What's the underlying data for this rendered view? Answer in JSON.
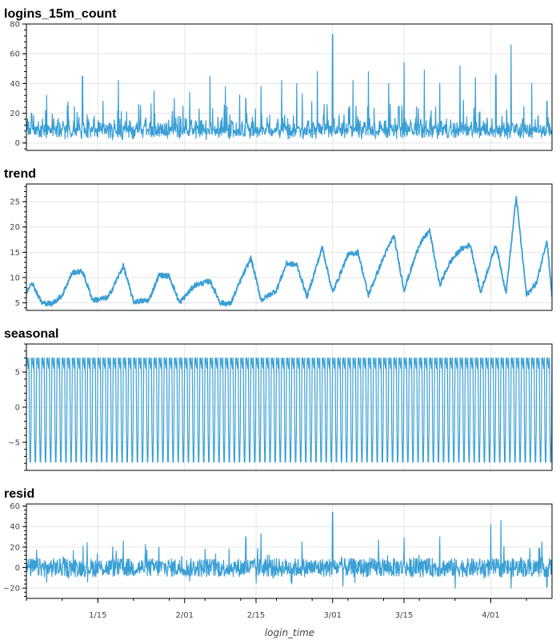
{
  "chart_data": {
    "type": "line",
    "xlabel": "login_time",
    "x_range": [
      "2020-01-01",
      "2020-04-13"
    ],
    "x_tick_labels": [
      {
        "label": "1/15",
        "date": "2020-01-15"
      },
      {
        "label": "2/01",
        "date": "2020-02-01"
      },
      {
        "label": "2/15",
        "date": "2020-02-15"
      },
      {
        "label": "3/01",
        "date": "2020-03-01"
      },
      {
        "label": "3/15",
        "date": "2020-03-15"
      },
      {
        "label": "4/01",
        "date": "2020-04-01"
      }
    ],
    "line_color": "#3a9fd5",
    "grid": true,
    "panels": [
      {
        "title": "logins_15m_count",
        "ylim": [
          -5,
          80
        ],
        "yticks": [
          0,
          20,
          40,
          60,
          80
        ],
        "series": [
          {
            "x": "2020-01-02",
            "y": 20
          },
          {
            "x": "2020-01-05",
            "y": 32
          },
          {
            "x": "2020-01-09",
            "y": 25
          },
          {
            "x": "2020-01-12",
            "y": 45
          },
          {
            "x": "2020-01-16",
            "y": 28
          },
          {
            "x": "2020-01-19",
            "y": 42
          },
          {
            "x": "2020-01-23",
            "y": 26
          },
          {
            "x": "2020-01-26",
            "y": 35
          },
          {
            "x": "2020-01-30",
            "y": 30
          },
          {
            "x": "2020-02-02",
            "y": 34
          },
          {
            "x": "2020-02-06",
            "y": 45
          },
          {
            "x": "2020-02-09",
            "y": 38
          },
          {
            "x": "2020-02-13",
            "y": 30
          },
          {
            "x": "2020-02-16",
            "y": 38
          },
          {
            "x": "2020-02-20",
            "y": 42
          },
          {
            "x": "2020-02-23",
            "y": 40
          },
          {
            "x": "2020-02-27",
            "y": 48
          },
          {
            "x": "2020-03-01",
            "y": 73
          },
          {
            "x": "2020-03-05",
            "y": 42
          },
          {
            "x": "2020-03-08",
            "y": 48
          },
          {
            "x": "2020-03-12",
            "y": 40
          },
          {
            "x": "2020-03-15",
            "y": 54
          },
          {
            "x": "2020-03-19",
            "y": 49
          },
          {
            "x": "2020-03-22",
            "y": 40
          },
          {
            "x": "2020-03-26",
            "y": 52
          },
          {
            "x": "2020-03-29",
            "y": 44
          },
          {
            "x": "2020-04-02",
            "y": 46
          },
          {
            "x": "2020-04-05",
            "y": 66
          },
          {
            "x": "2020-04-09",
            "y": 40
          },
          {
            "x": "2020-04-12",
            "y": 28
          }
        ]
      },
      {
        "title": "trend",
        "ylim": [
          3.5,
          28.5
        ],
        "yticks": [
          5,
          10,
          15,
          20,
          25
        ],
        "series": [
          {
            "x": "2020-01-01",
            "y": 7.0
          },
          {
            "x": "2020-01-02",
            "y": 9.2
          },
          {
            "x": "2020-01-04",
            "y": 5.0
          },
          {
            "x": "2020-01-06",
            "y": 4.8
          },
          {
            "x": "2020-01-08",
            "y": 6.5
          },
          {
            "x": "2020-01-10",
            "y": 11.0
          },
          {
            "x": "2020-01-12",
            "y": 11.2
          },
          {
            "x": "2020-01-14",
            "y": 5.5
          },
          {
            "x": "2020-01-17",
            "y": 6.0
          },
          {
            "x": "2020-01-20",
            "y": 12.3
          },
          {
            "x": "2020-01-22",
            "y": 5.2
          },
          {
            "x": "2020-01-25",
            "y": 5.5
          },
          {
            "x": "2020-01-27",
            "y": 10.5
          },
          {
            "x": "2020-01-29",
            "y": 10.3
          },
          {
            "x": "2020-01-31",
            "y": 5.0
          },
          {
            "x": "2020-02-03",
            "y": 8.5
          },
          {
            "x": "2020-02-06",
            "y": 9.3
          },
          {
            "x": "2020-02-08",
            "y": 5.0
          },
          {
            "x": "2020-02-10",
            "y": 4.8
          },
          {
            "x": "2020-02-12",
            "y": 9.5
          },
          {
            "x": "2020-02-14",
            "y": 13.8
          },
          {
            "x": "2020-02-16",
            "y": 5.5
          },
          {
            "x": "2020-02-19",
            "y": 7.5
          },
          {
            "x": "2020-02-21",
            "y": 12.8
          },
          {
            "x": "2020-02-23",
            "y": 12.5
          },
          {
            "x": "2020-02-25",
            "y": 6.2
          },
          {
            "x": "2020-02-28",
            "y": 16.0
          },
          {
            "x": "2020-03-01",
            "y": 7.0
          },
          {
            "x": "2020-03-04",
            "y": 14.5
          },
          {
            "x": "2020-03-06",
            "y": 15.0
          },
          {
            "x": "2020-03-08",
            "y": 6.5
          },
          {
            "x": "2020-03-11",
            "y": 14.0
          },
          {
            "x": "2020-03-13",
            "y": 18.3
          },
          {
            "x": "2020-03-15",
            "y": 7.5
          },
          {
            "x": "2020-03-18",
            "y": 16.5
          },
          {
            "x": "2020-03-20",
            "y": 19.3
          },
          {
            "x": "2020-03-22",
            "y": 8.5
          },
          {
            "x": "2020-03-24",
            "y": 13.0
          },
          {
            "x": "2020-03-26",
            "y": 15.5
          },
          {
            "x": "2020-03-28",
            "y": 16.5
          },
          {
            "x": "2020-03-30",
            "y": 7.0
          },
          {
            "x": "2020-04-02",
            "y": 16.5
          },
          {
            "x": "2020-04-04",
            "y": 7.0
          },
          {
            "x": "2020-04-06",
            "y": 26.0
          },
          {
            "x": "2020-04-08",
            "y": 6.5
          },
          {
            "x": "2020-04-10",
            "y": 9.0
          },
          {
            "x": "2020-04-12",
            "y": 17.5
          },
          {
            "x": "2020-04-13",
            "y": 6.5
          }
        ]
      },
      {
        "title": "seasonal",
        "ylim": [
          -9,
          9
        ],
        "yticks": [
          -5,
          0,
          5
        ],
        "period": "1 day",
        "max": 7,
        "min": -7.8,
        "levels": [
          7.0,
          6.2,
          5.8,
          5.5,
          -3.5,
          -7.8
        ]
      },
      {
        "title": "resid",
        "ylim": [
          -30,
          62
        ],
        "yticks": [
          -20,
          0,
          20,
          40,
          60
        ],
        "series": [
          {
            "x": "2020-01-03",
            "y": 17
          },
          {
            "x": "2020-01-05",
            "y": -14
          },
          {
            "x": "2020-01-13",
            "y": 30
          },
          {
            "x": "2020-01-13",
            "y": -14
          },
          {
            "x": "2020-01-20",
            "y": 26
          },
          {
            "x": "2020-01-27",
            "y": 20
          },
          {
            "x": "2020-02-02",
            "y": -13
          },
          {
            "x": "2020-02-05",
            "y": 18
          },
          {
            "x": "2020-02-13",
            "y": 30
          },
          {
            "x": "2020-02-15",
            "y": -15
          },
          {
            "x": "2020-02-16",
            "y": 33
          },
          {
            "x": "2020-02-22",
            "y": -16
          },
          {
            "x": "2020-02-24",
            "y": 25
          },
          {
            "x": "2020-03-01",
            "y": 54
          },
          {
            "x": "2020-03-03",
            "y": -18
          },
          {
            "x": "2020-03-10",
            "y": 27
          },
          {
            "x": "2020-03-15",
            "y": 29
          },
          {
            "x": "2020-03-22",
            "y": 30
          },
          {
            "x": "2020-03-25",
            "y": -20
          },
          {
            "x": "2020-04-01",
            "y": 42
          },
          {
            "x": "2020-04-03",
            "y": 46
          },
          {
            "x": "2020-04-05",
            "y": -20
          },
          {
            "x": "2020-04-11",
            "y": 25
          },
          {
            "x": "2020-04-12",
            "y": -19
          }
        ]
      }
    ]
  }
}
